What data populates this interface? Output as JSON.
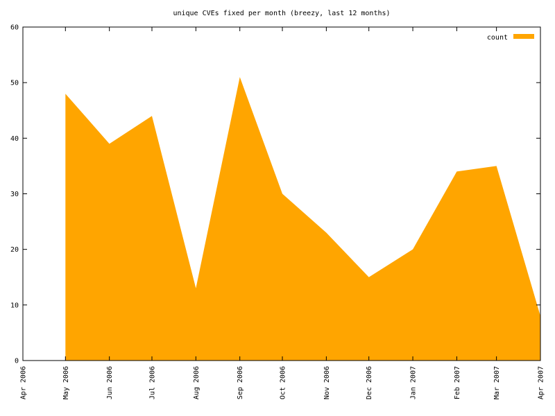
{
  "chart_data": {
    "type": "area",
    "title": "unique CVEs fixed per month (breezy, last 12 months)",
    "x": [
      "May 2006",
      "Jun 2006",
      "Jul 2006",
      "Aug 2006",
      "Sep 2006",
      "Oct 2006",
      "Nov 2006",
      "Dec 2006",
      "Jan 2007",
      "Feb 2007",
      "Mar 2007",
      "Apr 2007"
    ],
    "series": [
      {
        "name": "count",
        "color": "#ffa500",
        "values": [
          48,
          39,
          44,
          13,
          51,
          30,
          23,
          15,
          20,
          34,
          35,
          8
        ]
      }
    ],
    "xlim": [
      "Apr 2006",
      "Apr 2007"
    ],
    "xticks": [
      "Apr 2006",
      "May 2006",
      "Jun 2006",
      "Jul 2006",
      "Aug 2006",
      "Sep 2006",
      "Oct 2006",
      "Nov 2006",
      "Dec 2006",
      "Jan 2007",
      "Feb 2007",
      "Mar 2007",
      "Apr 2007"
    ],
    "ylim": [
      0,
      60
    ],
    "yticks": [
      0,
      10,
      20,
      30,
      40,
      50,
      60
    ],
    "legend": "top-right"
  }
}
